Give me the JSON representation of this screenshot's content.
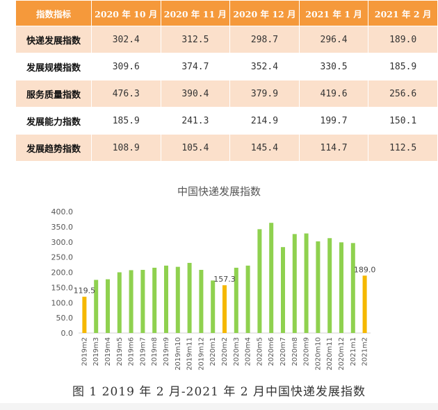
{
  "table": {
    "headers": [
      "指数指标",
      "2020 年 10 月",
      "2020 年 11 月",
      "2020 年 12 月",
      "2021 年 1 月",
      "2021 年 2 月"
    ],
    "rows": [
      {
        "label": "快递发展指数",
        "values": [
          "302.4",
          "312.5",
          "298.7",
          "296.4",
          "189.0"
        ]
      },
      {
        "label": "发展规模指数",
        "values": [
          "309.6",
          "374.7",
          "352.4",
          "330.5",
          "185.9"
        ]
      },
      {
        "label": "服务质量指数",
        "values": [
          "476.3",
          "390.4",
          "379.9",
          "419.6",
          "256.6"
        ]
      },
      {
        "label": "发展能力指数",
        "values": [
          "185.9",
          "241.3",
          "214.9",
          "199.7",
          "150.1"
        ]
      },
      {
        "label": "发展趋势指数",
        "values": [
          "108.9",
          "105.4",
          "145.4",
          "114.7",
          "112.5"
        ]
      }
    ],
    "header_color": "#f5993b",
    "stripe_color": "#fbe0cb"
  },
  "chart_data": {
    "type": "bar",
    "title": "中国快递发展指数",
    "categories": [
      "2019m2",
      "2019m3",
      "2019m4",
      "2019m5",
      "2019m6",
      "2019m7",
      "2019m8",
      "2019m9",
      "2019m10",
      "2019m11",
      "2019m12",
      "2020m1",
      "2020m2",
      "2020m3",
      "2020m4",
      "2020m5",
      "2020m6",
      "2020m7",
      "2020m8",
      "2020m9",
      "2020m10",
      "2020m11",
      "2020m12",
      "2021m1",
      "2021m2"
    ],
    "values": [
      119.5,
      175,
      177,
      200,
      207,
      208,
      215,
      222,
      218,
      231,
      208,
      173,
      157.3,
      215,
      222,
      342,
      363,
      283,
      326,
      328,
      302,
      312.5,
      298.7,
      296.4,
      189.0
    ],
    "highlight_indices": [
      0,
      12,
      24
    ],
    "data_labels": [
      {
        "index": 0,
        "text": "119.5"
      },
      {
        "index": 12,
        "text": "157.3"
      },
      {
        "index": 24,
        "text": "189.0"
      }
    ],
    "ylim": [
      0,
      400
    ],
    "yticks": [
      "0.0",
      "50.0",
      "100.0",
      "150.0",
      "200.0",
      "250.0",
      "300.0",
      "350.0",
      "400.0"
    ],
    "colors": {
      "default": "#8fd14f",
      "highlight": "#f5b800"
    },
    "grid": false,
    "legend": "none",
    "xlabel": "",
    "ylabel": ""
  },
  "caption": "图 1  2019 年 2 月-2021 年 2 月中国快递发展指数"
}
